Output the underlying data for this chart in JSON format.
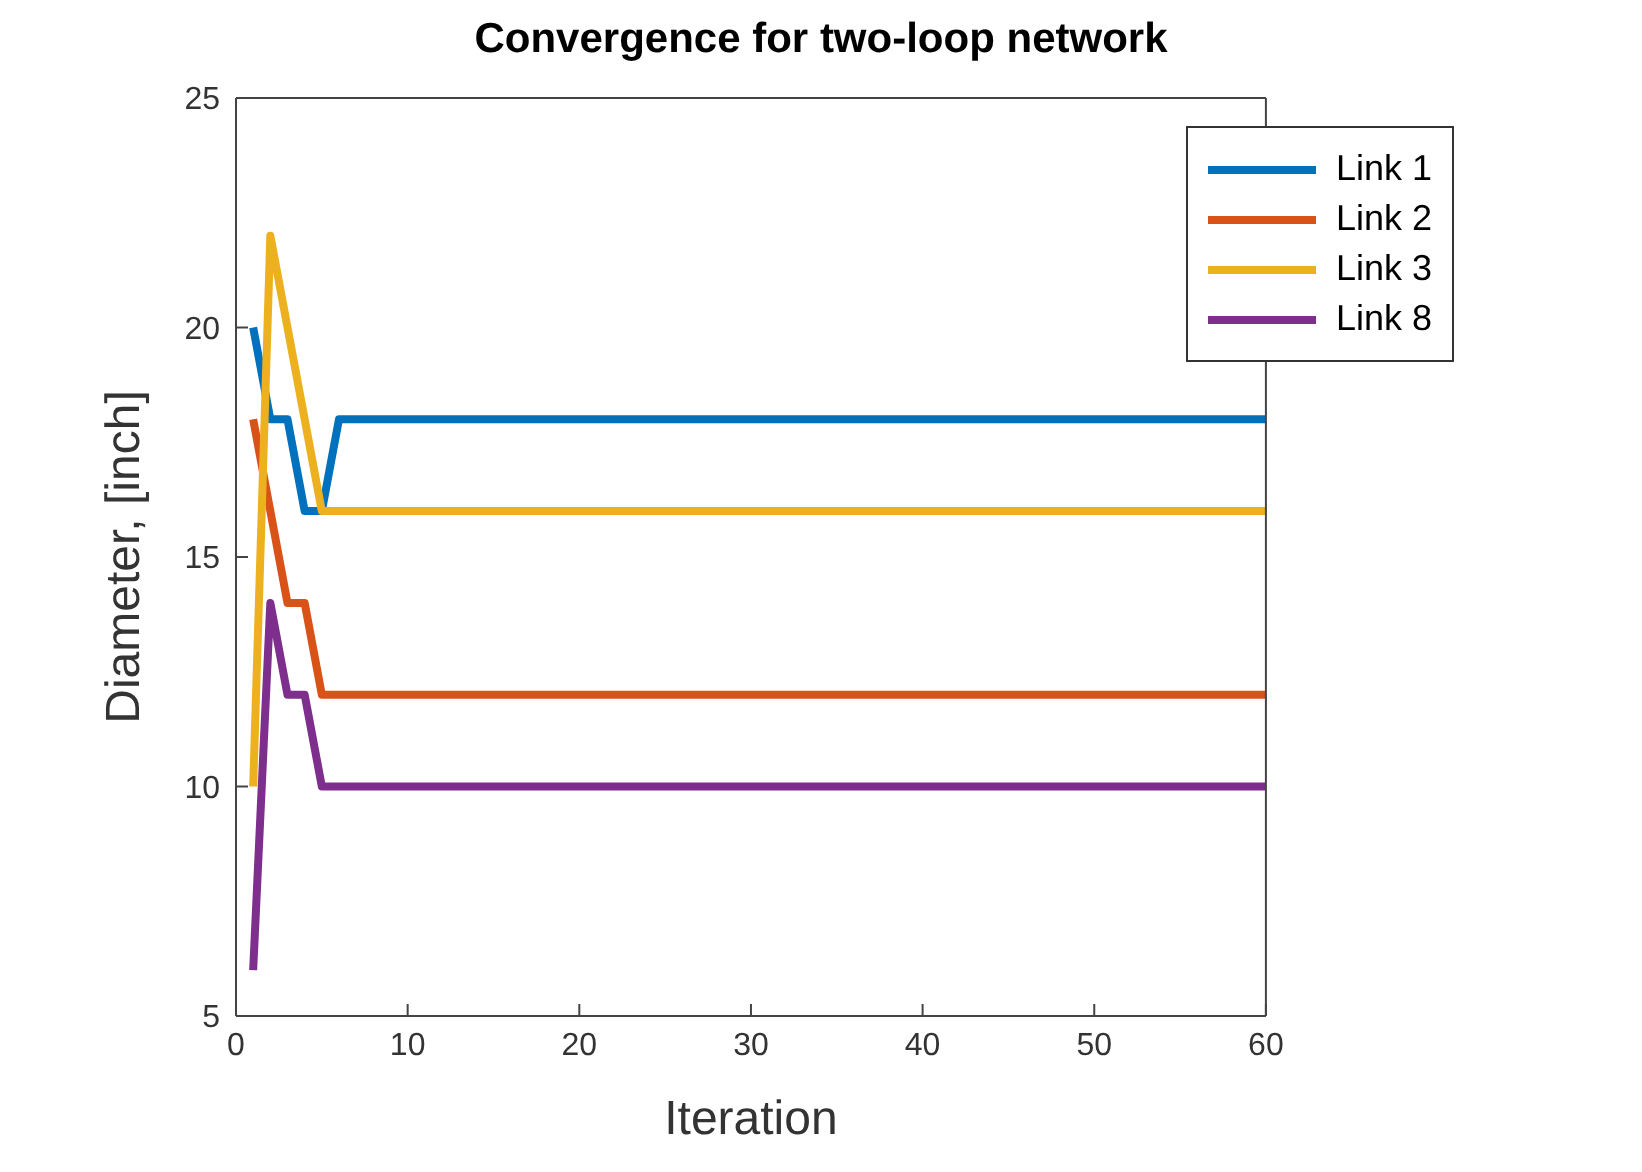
{
  "chart_data": {
    "type": "line",
    "title": "Convergence for two-loop network",
    "xlabel": "Iteration",
    "ylabel": "Diameter, [inch]",
    "xlim": [
      0,
      60
    ],
    "xticks": [
      0,
      10,
      20,
      30,
      40,
      50,
      60
    ],
    "ylim": [
      5,
      25
    ],
    "yticks": [
      5,
      10,
      15,
      20,
      25
    ],
    "grid": false,
    "legend": "top right",
    "marker": "none",
    "line_style": "solid",
    "series": [
      {
        "name": "Link 1",
        "color": "#0072bd",
        "x": [
          1,
          2,
          3,
          4,
          5,
          6,
          60
        ],
        "values": [
          20,
          18,
          18,
          16,
          16,
          18,
          18
        ]
      },
      {
        "name": "Link 2",
        "color": "#d95319",
        "x": [
          1,
          2,
          3,
          4,
          5,
          60
        ],
        "values": [
          18,
          16,
          14,
          14,
          12,
          12
        ]
      },
      {
        "name": "Link 3",
        "color": "#edb120",
        "x": [
          1,
          2,
          3,
          4,
          5,
          60
        ],
        "values": [
          10,
          22,
          20,
          18,
          16,
          16
        ]
      },
      {
        "name": "Link 8",
        "color": "#7e2f8e",
        "x": [
          1,
          2,
          3,
          4,
          5,
          60
        ],
        "values": [
          6,
          14,
          12,
          12,
          10,
          10
        ]
      }
    ]
  }
}
